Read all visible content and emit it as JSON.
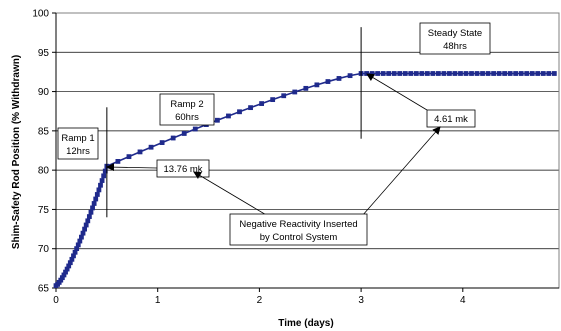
{
  "chart_data": {
    "type": "scatter",
    "xlabel": "Time (days)",
    "ylabel": "Shim-Safety Rod Position (% Withdrawn)",
    "xlim": [
      0,
      5
    ],
    "ylim": [
      65,
      100
    ],
    "x_ticks": [
      "0",
      "1",
      "2",
      "3",
      "4"
    ],
    "y_ticks": [
      "65",
      "70",
      "75",
      "80",
      "85",
      "90",
      "95",
      "100"
    ],
    "grid": "horizontal",
    "series": [
      {
        "color": "#1f2a8c",
        "marker": "square",
        "line": true,
        "segments": [
          {
            "x_start": 0,
            "x_end": 0.5,
            "y_start": 65.3,
            "y_end": 80.5,
            "points": 33,
            "curve": "concave-up"
          },
          {
            "x_start": 0.5,
            "x_end": 3.0,
            "y_start": 80.5,
            "y_end": 92.3,
            "points": 24,
            "curve": "concave-down"
          },
          {
            "x_start": 3.0,
            "x_end": 4.9,
            "y_start": 92.3,
            "y_end": 92.3,
            "points": 36,
            "curve": "flat"
          }
        ]
      }
    ],
    "markers": [
      {
        "x": 0.5,
        "y_top": 88,
        "y_bottom": 74
      },
      {
        "x": 3.0,
        "y_top": 98.2,
        "y_bottom": 84
      }
    ],
    "annotations": {
      "ramp1": [
        "Ramp 1",
        "12hrs"
      ],
      "ramp2": [
        "Ramp 2",
        "60hrs"
      ],
      "steady": [
        "Steady State",
        "48hrs"
      ],
      "mk1": "13.76 mk",
      "mk2": "4.61 mk",
      "neg": [
        "Negative Reactivity Inserted",
        "by Control System"
      ]
    }
  }
}
